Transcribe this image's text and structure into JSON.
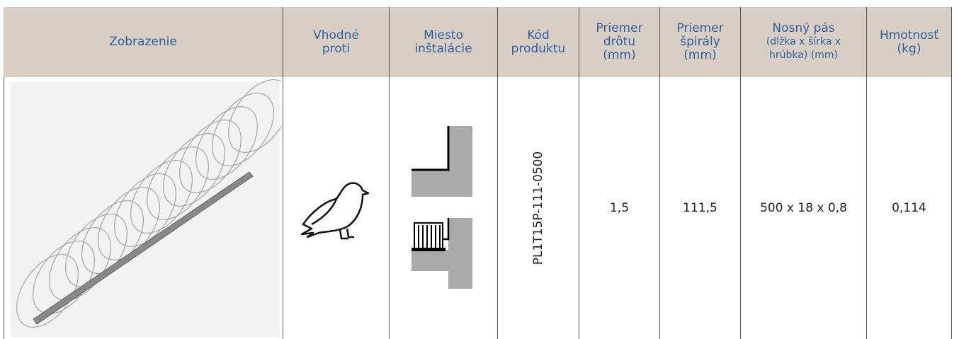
{
  "table": {
    "headers": [
      [
        "Zobrazenie"
      ],
      [
        "Vhodné",
        "proti"
      ],
      [
        "Miesto",
        "inštalácie"
      ],
      [
        "Kód",
        "produktu"
      ],
      [
        "Priemer",
        "drôtu",
        "(mm)"
      ],
      [
        "Priemer",
        "špirály",
        "(mm)"
      ],
      [
        "Nosný pás",
        "(dĺžka x šírka x",
        "hrúbka) (mm)"
      ],
      [
        "Hmotnosť",
        "(kg)"
      ]
    ],
    "row": {
      "code": "PL1T15P-111-0500",
      "cells": [
        "1,5",
        "111,5",
        "500 x 18 x 0,8",
        "0,114"
      ]
    }
  }
}
